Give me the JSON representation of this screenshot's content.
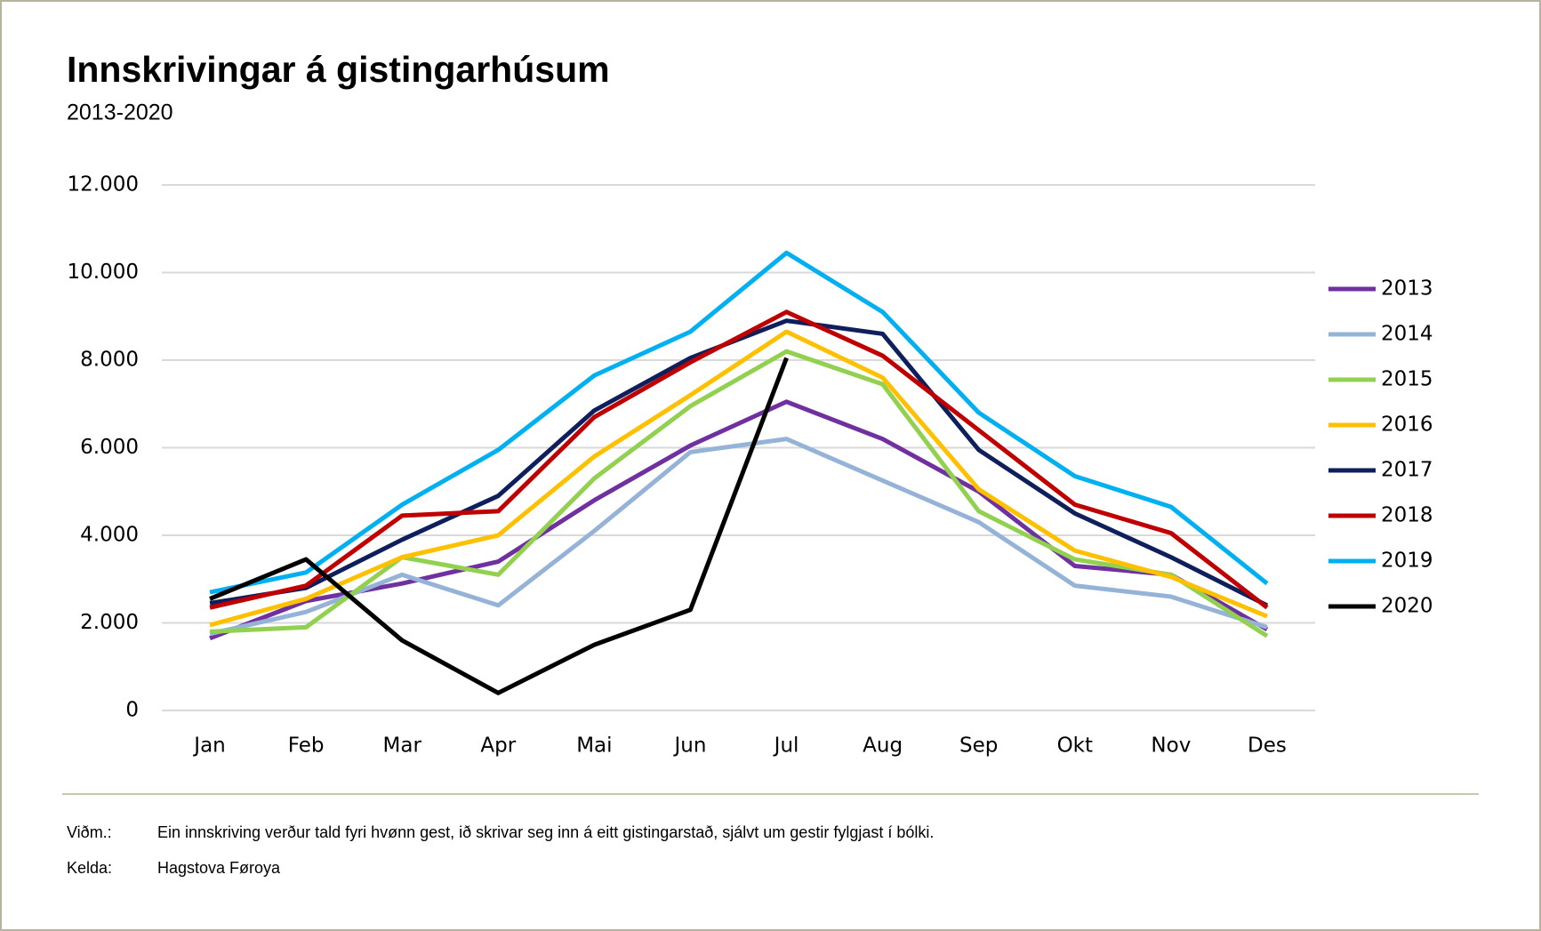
{
  "chart_data": {
    "type": "line",
    "title": "Innskrivingar á gistingarhúsum",
    "subtitle": "2013-2020",
    "categories": [
      "Jan",
      "Feb",
      "Mar",
      "Apr",
      "Mai",
      "Jun",
      "Jul",
      "Aug",
      "Sep",
      "Okt",
      "Nov",
      "Des"
    ],
    "series": [
      {
        "name": "2013",
        "color": "#7030a0",
        "values": [
          1650,
          2500,
          2900,
          3400,
          4800,
          6050,
          7050,
          6200,
          5000,
          3300,
          3100,
          1850
        ]
      },
      {
        "name": "2014",
        "color": "#95b3d7",
        "values": [
          1750,
          2250,
          3100,
          2400,
          4100,
          5900,
          6200,
          5250,
          4300,
          2850,
          2600,
          1900
        ]
      },
      {
        "name": "2015",
        "color": "#92d050",
        "values": [
          1800,
          1900,
          3500,
          3100,
          5300,
          6950,
          8200,
          7450,
          4550,
          3450,
          3100,
          1700
        ]
      },
      {
        "name": "2016",
        "color": "#ffc000",
        "values": [
          1950,
          2550,
          3500,
          4000,
          5800,
          7200,
          8650,
          7600,
          5050,
          3650,
          3050,
          2150
        ]
      },
      {
        "name": "2017",
        "color": "#0f1f5c",
        "values": [
          2450,
          2800,
          3900,
          4900,
          6850,
          8050,
          8900,
          8600,
          5950,
          4500,
          3500,
          2400
        ]
      },
      {
        "name": "2018",
        "color": "#c00000",
        "values": [
          2350,
          2850,
          4450,
          4550,
          6700,
          7950,
          9100,
          8100,
          6400,
          4700,
          4050,
          2350
        ]
      },
      {
        "name": "2019",
        "color": "#00b0f0",
        "values": [
          2700,
          3150,
          4700,
          5950,
          7650,
          8650,
          10450,
          9100,
          6800,
          5350,
          4650,
          2900
        ]
      },
      {
        "name": "2020",
        "color": "#000000",
        "values": [
          2550,
          3450,
          1600,
          400,
          1500,
          2300,
          8050,
          null,
          null,
          null,
          null,
          null
        ]
      }
    ],
    "ylim": [
      0,
      12000
    ],
    "yticks": [
      0,
      {
        "value": 2000,
        "label": "2.000"
      },
      {
        "value": 4000,
        "label": "4.000"
      },
      {
        "value": 6000,
        "label": "6.000"
      },
      {
        "value": 8000,
        "label": "8.000"
      },
      {
        "value": 10000,
        "label": "10.000"
      },
      {
        "value": 12000,
        "label": "12.000"
      }
    ],
    "grid": true,
    "legend": "right"
  },
  "notes": [
    {
      "label": "Viðm.:",
      "text": "Ein innskriving verður tald fyri hvønn gest, ið skrivar seg inn á eitt gistingarstað, sjálvt um gestir fylgjast í bólki."
    },
    {
      "label": "Kelda:",
      "text": "Hagstova Føroya"
    }
  ]
}
